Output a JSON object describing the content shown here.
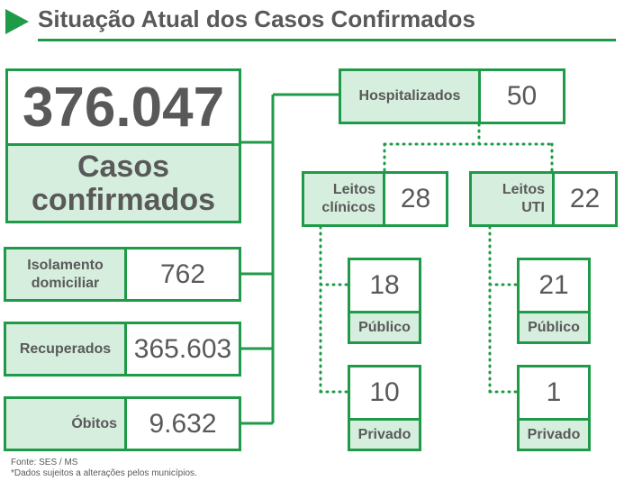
{
  "header": {
    "title": "Situação Atual dos Casos Confirmados"
  },
  "total": {
    "value": "376.047",
    "label_line1": "Casos",
    "label_line2": "confirmados"
  },
  "isolamento": {
    "label_line1": "Isolamento",
    "label_line2": "domiciliar",
    "value": "762"
  },
  "recuperados": {
    "label": "Recuperados",
    "value": "365.603"
  },
  "obitos": {
    "label": "Óbitos",
    "value": "9.632"
  },
  "hospitalizados": {
    "label": "Hospitalizados",
    "value": "50"
  },
  "leitos_clinicos": {
    "label_line1": "Leitos",
    "label_line2": "clínicos",
    "value": "28",
    "publico": {
      "value": "18",
      "label": "Público"
    },
    "privado": {
      "value": "10",
      "label": "Privado"
    }
  },
  "leitos_uti": {
    "label_line1": "Leitos",
    "label_line2": "UTI",
    "value": "22",
    "publico": {
      "value": "21",
      "label": "Público"
    },
    "privado": {
      "value": "1",
      "label": "Privado"
    }
  },
  "footer": {
    "source": "Fonte: SES / MS",
    "note": "*Dados sujeitos a alterações pelos municípios."
  },
  "colors": {
    "green": "#1f9a48",
    "light_green": "#d5eedd",
    "text": "#595959"
  }
}
